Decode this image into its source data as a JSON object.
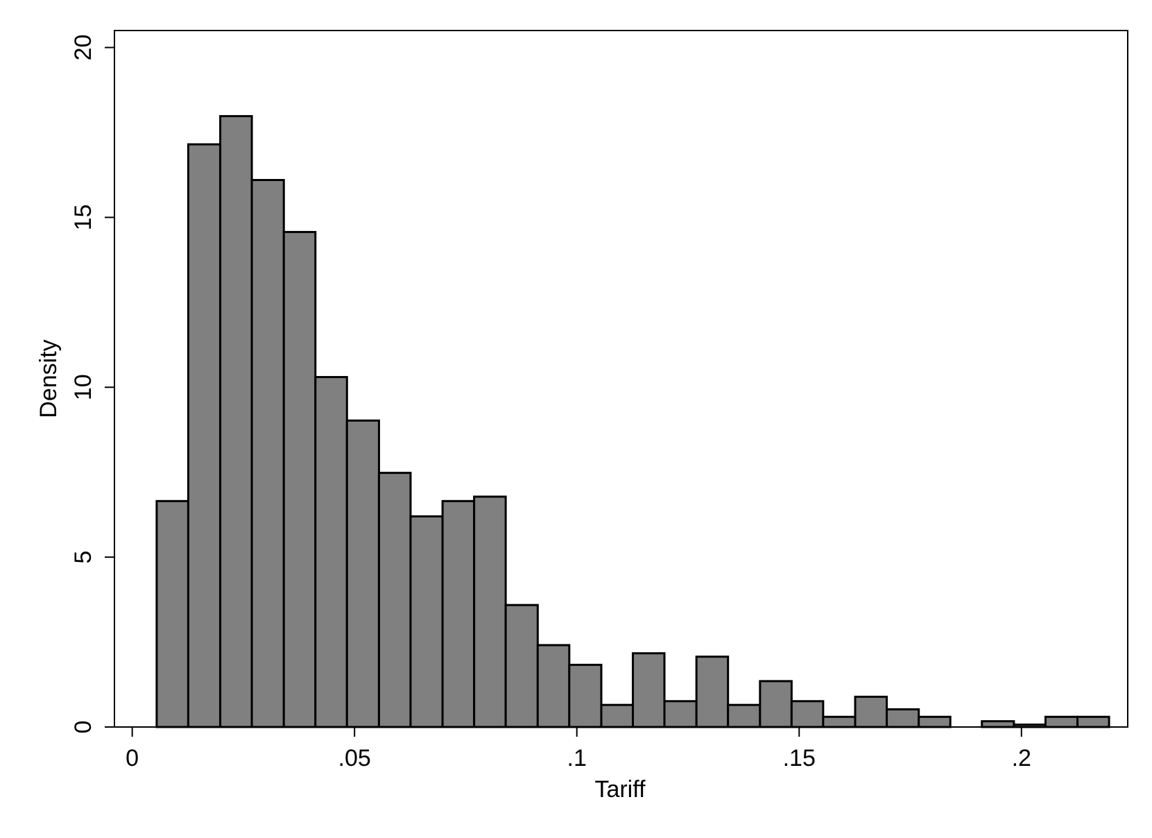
{
  "chart_data": {
    "type": "histogram",
    "x_label": "Tariff",
    "y_label": "Density",
    "bins": [
      0.0055,
      0.0126,
      0.0198,
      0.0269,
      0.0341,
      0.0412,
      0.0483,
      0.0555,
      0.0626,
      0.0698,
      0.0769,
      0.084,
      0.0912,
      0.0983,
      0.1055,
      0.1126,
      0.1197,
      0.1269,
      0.134,
      0.1412,
      0.1483,
      0.1554,
      0.1626,
      0.1697,
      0.1769,
      0.184,
      0.1911,
      0.1983,
      0.2054,
      0.2126,
      0.2197
    ],
    "values": [
      6.65,
      17.15,
      17.98,
      16.1,
      14.57,
      10.3,
      9.02,
      7.48,
      6.2,
      6.65,
      6.78,
      3.59,
      2.41,
      1.83,
      0.65,
      2.17,
      0.76,
      2.07,
      0.65,
      1.35,
      0.76,
      0.3,
      0.89,
      0.52,
      0.3,
      0,
      0.17,
      0.07,
      0.3,
      0.3
    ],
    "color": "#808080",
    "edgecolor": "#000000",
    "xlim": [
      -0.004,
      0.2239
    ],
    "ylim": [
      0,
      20.5
    ],
    "xticks": [
      0,
      {
        "value": 0.05,
        "label": ".05"
      },
      {
        "value": 0.1,
        "label": ".1"
      },
      {
        "value": 0.15,
        "label": ".15"
      },
      {
        "value": 0.2,
        "label": ".2"
      }
    ],
    "yticks": [
      0,
      5,
      10,
      15,
      20
    ],
    "grid": false
  }
}
